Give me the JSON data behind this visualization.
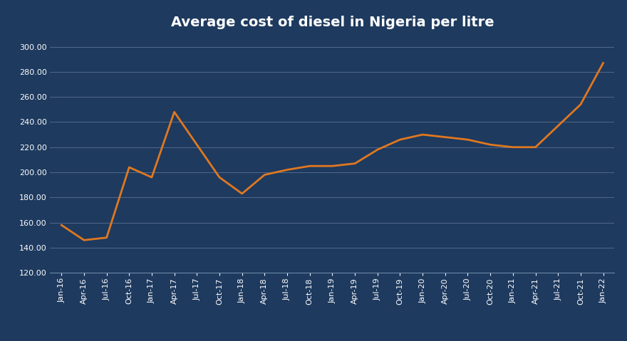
{
  "title": "Average cost of diesel in Nigeria per litre",
  "background_color": "#1e3a5f",
  "line_color": "#e07820",
  "text_color": "#ffffff",
  "grid_color": "#5a7090",
  "ylim": [
    120,
    310
  ],
  "yticks": [
    120.0,
    140.0,
    160.0,
    180.0,
    200.0,
    220.0,
    240.0,
    260.0,
    280.0,
    300.0
  ],
  "labels": [
    "Jan-16",
    "Apr-16",
    "Jul-16",
    "Oct-16",
    "Jan-17",
    "Apr-17",
    "Jul-17",
    "Oct-17",
    "Jan-18",
    "Apr-18",
    "Jul-18",
    "Oct-18",
    "Jan-19",
    "Apr-19",
    "Jul-19",
    "Oct-19",
    "Jan-20",
    "Apr-20",
    "Jul-20",
    "Oct-20",
    "Jan-21",
    "Apr-21",
    "Jul-21",
    "Oct-21",
    "Jan-22"
  ],
  "values": [
    158,
    146,
    148,
    204,
    196,
    248,
    222,
    196,
    183,
    198,
    202,
    205,
    205,
    207,
    218,
    226,
    230,
    228,
    226,
    222,
    220,
    220,
    237,
    254,
    287
  ],
  "title_fontsize": 14,
  "tick_fontsize": 8,
  "line_width": 2.0
}
